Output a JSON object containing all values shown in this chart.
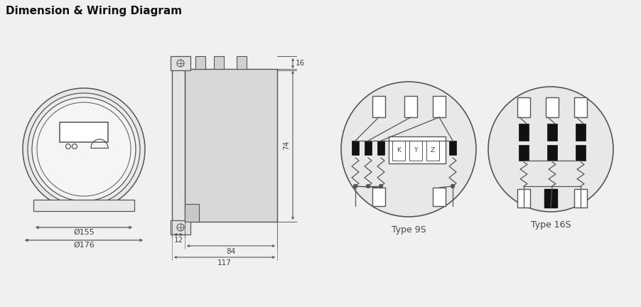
{
  "title": "Dimension & Wiring Diagram",
  "bg_color": "#f0f0f0",
  "face_color": "#f5f5f5",
  "line_color": "#555555",
  "dark_color": "#444444",
  "black": "#111111",
  "white": "#ffffff",
  "type9s_label": "Type 9S",
  "type16s_label": "Type 16S",
  "dim_155": "Ø155",
  "dim_176": "Ø176",
  "dim_16": "16",
  "dim_74": "74",
  "dim_12": "12",
  "dim_84": "84",
  "dim_117": "117"
}
